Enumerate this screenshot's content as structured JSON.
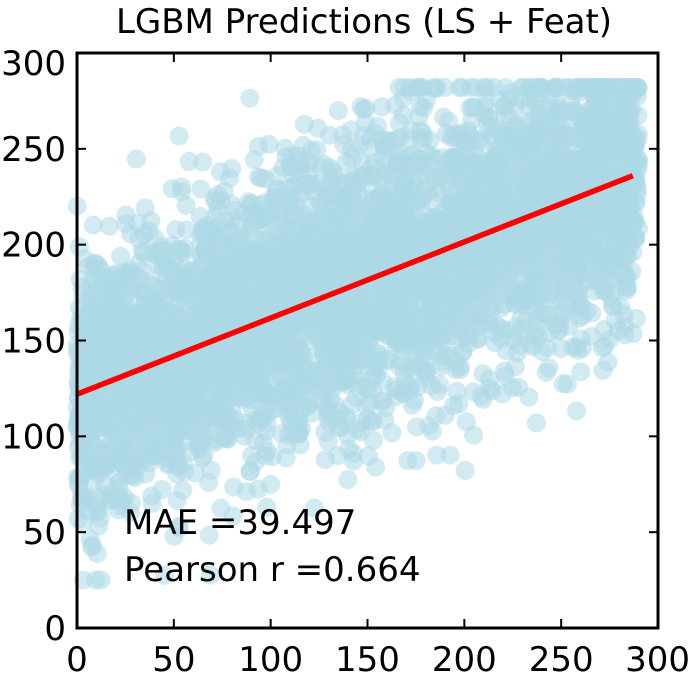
{
  "chart_data": {
    "type": "scatter",
    "title": "LGBM Predictions (LS + Feat)",
    "xlabel": "",
    "ylabel": "",
    "xlim": [
      0,
      300
    ],
    "ylim": [
      0,
      300
    ],
    "xticks": [
      "0",
      "50",
      "100",
      "150",
      "200",
      "250",
      "300"
    ],
    "yticks": [
      "0",
      "50",
      "100",
      "150",
      "200",
      "250",
      "300"
    ],
    "grid": false,
    "point_color": "#add8e6",
    "line_color": "#ff0000",
    "scatter_extent": {
      "x": [
        0,
        290
      ],
      "y": [
        25,
        282
      ]
    },
    "fit_line": {
      "x": [
        0,
        287
      ],
      "y": [
        122,
        236
      ]
    },
    "annotations": [
      "MAE =39.497",
      "Pearson r =0.664"
    ]
  }
}
